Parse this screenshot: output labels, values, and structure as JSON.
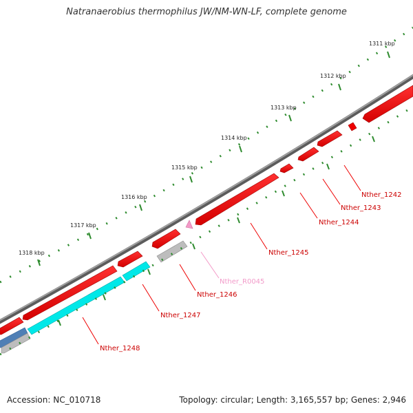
{
  "title": "Natranaerobius thermophilus JW/NM-WN-LF, complete genome",
  "footer": {
    "accession": "Accession: NC_010718",
    "summary": "Topology: circular; Length: 3,165,557 bp; Genes: 2,946"
  },
  "colors": {
    "backbone": "#808080",
    "cds": "#ee0000",
    "cds_dark": "#aa0000",
    "rna": "#f49ac8",
    "cog": "#00e8e8",
    "cog_gray": "#bdbdbd",
    "cog_blue": "#4f7fb5",
    "tick": "#2e8b2e",
    "label_red": "#cc0000",
    "label_pink": "#f29ac9"
  },
  "kbp_labels": [
    "1311 kbp",
    "1312 kbp",
    "1313 kbp",
    "1314 kbp",
    "1315 kbp",
    "1316 kbp",
    "1317 kbp",
    "1318 kbp"
  ],
  "gene_labels": [
    {
      "text": "Nther_1242",
      "color": "red"
    },
    {
      "text": "Nther_1243",
      "color": "red"
    },
    {
      "text": "Nther_1244",
      "color": "red"
    },
    {
      "text": "Nther_1245",
      "color": "red"
    },
    {
      "text": "Nther_R0045",
      "color": "pink"
    },
    {
      "text": "Nther_1246",
      "color": "red"
    },
    {
      "text": "Nther_1247",
      "color": "red"
    },
    {
      "text": "Nther_1248",
      "color": "red"
    }
  ]
}
